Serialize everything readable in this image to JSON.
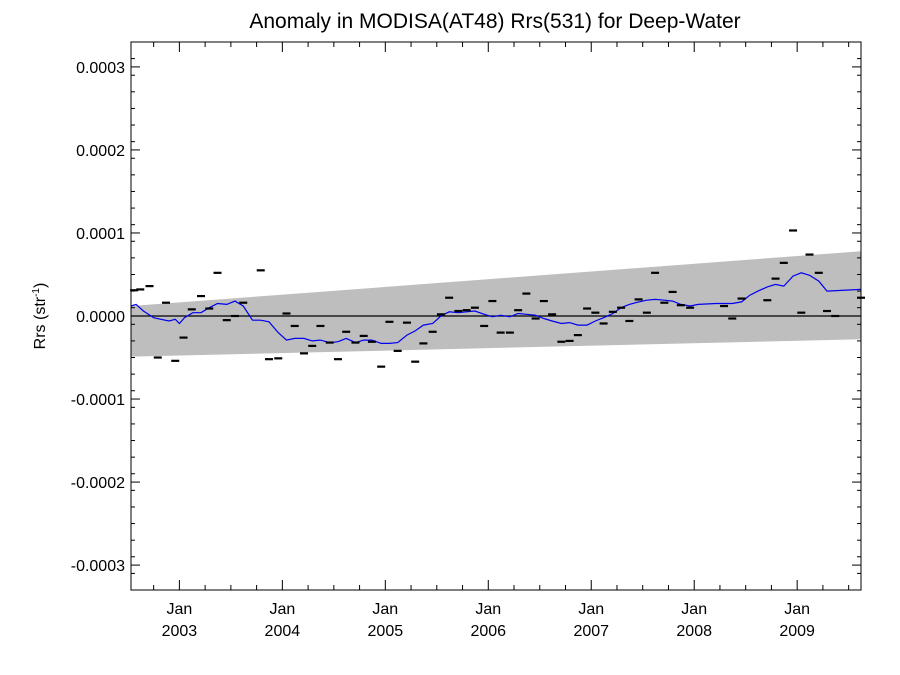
{
  "chart_data": {
    "type": "scatter",
    "title": "Anomaly in MODISA(AT48) Rrs(531) for Deep-Water",
    "ylabel_main": "Rrs (str",
    "ylabel_sup": "-1",
    "ylabel_close": ")",
    "xlabel": "",
    "xlim": [
      2002.53,
      2009.62
    ],
    "ylim": [
      -0.00033,
      0.00033
    ],
    "grid": false,
    "y_ticks": [
      {
        "value": 0.0003,
        "label": "0.0003"
      },
      {
        "value": 0.0002,
        "label": "0.0002"
      },
      {
        "value": 0.0001,
        "label": "0.0001"
      },
      {
        "value": 0.0,
        "label": "0.0000"
      },
      {
        "value": -0.0001,
        "label": "-0.0001"
      },
      {
        "value": -0.0002,
        "label": "-0.0002"
      },
      {
        "value": -0.0003,
        "label": "-0.0003"
      }
    ],
    "x_ticks": [
      {
        "value": 2003.0,
        "month": "Jan",
        "year": "2003"
      },
      {
        "value": 2004.0,
        "month": "Jan",
        "year": "2004"
      },
      {
        "value": 2005.0,
        "month": "Jan",
        "year": "2005"
      },
      {
        "value": 2006.0,
        "month": "Jan",
        "year": "2006"
      },
      {
        "value": 2007.0,
        "month": "Jan",
        "year": "2007"
      },
      {
        "value": 2008.0,
        "month": "Jan",
        "year": "2008"
      },
      {
        "value": 2009.0,
        "month": "Jan",
        "year": "2009"
      }
    ],
    "reference_line": 0.0,
    "band": {
      "x": [
        2002.53,
        2009.62
      ],
      "upper": [
        1.2e-05,
        7.8e-05
      ],
      "lower": [
        -4.9e-05,
        -2.8e-05
      ]
    },
    "points": {
      "name": "monthly anomaly",
      "x": [
        2002.56,
        2002.62,
        2002.71,
        2002.79,
        2002.87,
        2002.96,
        2003.04,
        2003.12,
        2003.21,
        2003.29,
        2003.37,
        2003.46,
        2003.54,
        2003.62,
        2003.79,
        2003.87,
        2003.96,
        2004.04,
        2004.12,
        2004.21,
        2004.29,
        2004.37,
        2004.46,
        2004.54,
        2004.62,
        2004.71,
        2004.79,
        2004.87,
        2004.96,
        2005.04,
        2005.12,
        2005.21,
        2005.29,
        2005.37,
        2005.46,
        2005.54,
        2005.62,
        2005.71,
        2005.79,
        2005.87,
        2005.96,
        2006.04,
        2006.12,
        2006.21,
        2006.29,
        2006.37,
        2006.46,
        2006.54,
        2006.62,
        2006.71,
        2006.79,
        2006.87,
        2006.96,
        2007.04,
        2007.12,
        2007.21,
        2007.29,
        2007.37,
        2007.46,
        2007.54,
        2007.62,
        2007.71,
        2007.79,
        2007.87,
        2007.96,
        2008.29,
        2008.37,
        2008.46,
        2008.71,
        2008.79,
        2008.87,
        2008.96,
        2009.04,
        2009.12,
        2009.21,
        2009.29,
        2009.37,
        2009.62
      ],
      "y": [
        3.1e-05,
        3.2e-05,
        3.6e-05,
        -5e-05,
        1.6e-05,
        -5.4e-05,
        -2.6e-05,
        8e-06,
        2.4e-05,
        9e-06,
        5.2e-05,
        -5e-06,
        0.0,
        1.6e-05,
        5.5e-05,
        -5.2e-05,
        -5.1e-05,
        3e-06,
        -1.2e-05,
        -4.5e-05,
        -3.6e-05,
        -1.2e-05,
        -3.2e-05,
        -5.2e-05,
        -1.9e-05,
        -3.2e-05,
        -2.4e-05,
        -3.1e-05,
        -6.1e-05,
        -7e-06,
        -4.2e-05,
        -8e-06,
        -5.5e-05,
        -3.3e-05,
        -1.9e-05,
        2e-06,
        2.2e-05,
        6e-06,
        7e-06,
        1e-05,
        -1.2e-05,
        1.8e-05,
        -2e-05,
        -2e-05,
        7e-06,
        2.7e-05,
        -3e-06,
        1.8e-05,
        2e-06,
        -3.1e-05,
        -3e-05,
        -2.3e-05,
        9e-06,
        4e-06,
        -9e-06,
        5e-06,
        1e-05,
        -6e-06,
        2e-05,
        4e-06,
        5.2e-05,
        1.6e-05,
        2.9e-05,
        1.3e-05,
        1e-05,
        1.2e-05,
        -3e-06,
        2.1e-05,
        1.9e-05,
        4.5e-05,
        6.4e-05,
        0.000103,
        4e-06,
        7.4e-05,
        5.2e-05,
        6e-06,
        0.0,
        2.2e-05
      ]
    },
    "series": [
      {
        "color": "#0000ee",
        "x": [
          2002.53,
          2002.58,
          2002.65,
          2002.75,
          2002.82,
          2002.9,
          2002.96,
          2003.0,
          2003.05,
          2003.13,
          2003.21,
          2003.29,
          2003.37,
          2003.46,
          2003.54,
          2003.62,
          2003.71,
          2003.79,
          2003.87,
          2003.96,
          2004.04,
          2004.12,
          2004.21,
          2004.29,
          2004.37,
          2004.46,
          2004.54,
          2004.62,
          2004.71,
          2004.79,
          2004.87,
          2004.96,
          2005.04,
          2005.12,
          2005.21,
          2005.29,
          2005.37,
          2005.46,
          2005.54,
          2005.62,
          2005.71,
          2005.79,
          2005.87,
          2005.96,
          2006.04,
          2006.12,
          2006.21,
          2006.29,
          2006.37,
          2006.46,
          2006.54,
          2006.62,
          2006.71,
          2006.79,
          2006.87,
          2006.96,
          2007.04,
          2007.12,
          2007.21,
          2007.29,
          2007.37,
          2007.46,
          2007.54,
          2007.62,
          2007.71,
          2007.79,
          2007.87,
          2007.96,
          2008.04,
          2008.21,
          2008.37,
          2008.46,
          2008.54,
          2008.62,
          2008.71,
          2008.79,
          2008.87,
          2008.96,
          2009.04,
          2009.12,
          2009.21,
          2009.29,
          2009.62
        ],
        "y": [
          1.2e-05,
          1.4e-05,
          6e-06,
          -2e-06,
          -4e-06,
          -6e-06,
          -4e-06,
          -9e-06,
          -2e-06,
          4e-06,
          4e-06,
          1e-05,
          1.5e-05,
          1.4e-05,
          1.8e-05,
          1.2e-05,
          -5e-06,
          -5e-06,
          -7e-06,
          -2e-05,
          -2.9e-05,
          -2.7e-05,
          -2.7e-05,
          -3e-05,
          -2.9e-05,
          -3.2e-05,
          -3.1e-05,
          -2.7e-05,
          -3.2e-05,
          -2.9e-05,
          -2.9e-05,
          -3.3e-05,
          -3.3e-05,
          -3.2e-05,
          -2.3e-05,
          -1.8e-05,
          -1.1e-05,
          -9e-06,
          0.0,
          5e-06,
          4e-06,
          5e-06,
          6e-06,
          2e-06,
          -1e-06,
          1e-06,
          -1e-06,
          3e-06,
          2e-06,
          1e-06,
          -3e-06,
          -6e-06,
          -9e-06,
          -8e-06,
          -1.1e-05,
          -1.1e-05,
          -6e-06,
          -2e-06,
          3e-06,
          1e-05,
          1.4e-05,
          1.7e-05,
          1.9e-05,
          2e-05,
          1.9e-05,
          1.8e-05,
          1.4e-05,
          1.2e-05,
          1.4e-05,
          1.5e-05,
          1.5e-05,
          1.7e-05,
          2.5e-05,
          3e-05,
          3.5e-05,
          3.8e-05,
          3.6e-05,
          4.8e-05,
          5.2e-05,
          4.9e-05,
          4.2e-05,
          3e-05,
          3.2e-05
        ]
      }
    ]
  },
  "colors": {
    "band": "#bebebe",
    "line": "#0000ee",
    "points": "#000000",
    "axes": "#000000"
  }
}
